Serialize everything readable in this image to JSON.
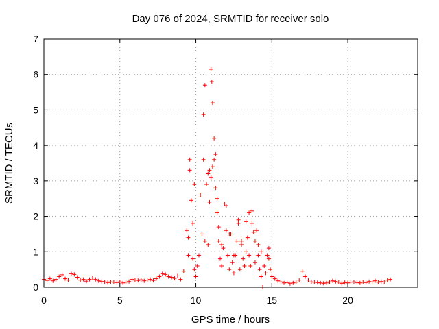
{
  "chart_data": {
    "type": "scatter",
    "title": "Day 076 of 2024, SRMTID for receiver solo",
    "xlabel": "GPS time / hours",
    "ylabel": "SRMTID / TECUs",
    "xlim": [
      0,
      24.6
    ],
    "ylim": [
      0,
      7
    ],
    "xticks": [
      0,
      5,
      10,
      15,
      20
    ],
    "yticks": [
      0,
      1,
      2,
      3,
      4,
      5,
      6,
      7
    ],
    "grid": true,
    "marker": "+",
    "marker_color": "#ff0000",
    "series": [
      {
        "name": "SRMTID",
        "x": [
          0.0,
          0.2,
          0.4,
          0.6,
          0.8,
          1.0,
          1.2,
          1.4,
          1.6,
          1.8,
          2.0,
          2.2,
          2.4,
          2.6,
          2.8,
          3.0,
          3.2,
          3.4,
          3.6,
          3.8,
          4.0,
          4.2,
          4.4,
          4.6,
          4.8,
          5.0,
          5.2,
          5.4,
          5.6,
          5.8,
          6.0,
          6.2,
          6.4,
          6.6,
          6.8,
          7.0,
          7.2,
          7.4,
          7.6,
          7.8,
          8.0,
          8.2,
          8.4,
          8.6,
          8.8,
          9.0,
          9.2,
          9.4,
          9.5,
          9.6,
          9.7,
          9.8,
          9.9,
          10.0,
          10.1,
          10.2,
          10.3,
          10.4,
          10.5,
          10.6,
          10.7,
          10.8,
          10.9,
          11.0,
          11.05,
          11.1,
          11.2,
          11.3,
          11.4,
          11.5,
          11.6,
          11.7,
          11.8,
          11.9,
          12.0,
          12.1,
          12.2,
          12.3,
          12.4,
          12.5,
          12.6,
          12.7,
          12.8,
          12.9,
          13.0,
          13.1,
          13.2,
          13.3,
          13.4,
          13.5,
          13.6,
          13.7,
          13.8,
          13.9,
          14.0,
          14.1,
          14.2,
          14.3,
          14.4,
          14.5,
          14.6,
          14.7,
          14.8,
          14.9,
          15.0,
          15.2,
          15.4,
          15.6,
          15.8,
          16.0,
          16.2,
          16.4,
          16.6,
          16.8,
          17.0,
          17.2,
          17.4,
          17.6,
          17.8,
          18.0,
          18.2,
          18.4,
          18.6,
          18.8,
          19.0,
          19.2,
          19.4,
          19.6,
          19.8,
          20.0,
          20.2,
          20.4,
          20.6,
          20.8,
          21.0,
          21.2,
          21.4,
          21.6,
          21.8,
          22.0,
          22.2,
          22.4,
          22.6,
          22.8,
          9.5,
          9.6,
          9.8,
          9.9,
          10.5,
          10.6,
          10.8,
          10.9,
          11.0,
          11.1,
          11.2,
          11.3,
          11.4,
          11.5,
          11.7,
          12.0,
          12.2,
          12.5,
          12.8,
          13.0,
          13.3,
          13.5,
          13.7,
          13.9,
          14.1,
          14.3,
          14.8
        ],
        "y": [
          0.22,
          0.19,
          0.24,
          0.18,
          0.22,
          0.3,
          0.35,
          0.24,
          0.2,
          0.38,
          0.36,
          0.28,
          0.2,
          0.22,
          0.17,
          0.22,
          0.26,
          0.22,
          0.18,
          0.16,
          0.15,
          0.13,
          0.15,
          0.14,
          0.13,
          0.15,
          0.12,
          0.14,
          0.16,
          0.22,
          0.2,
          0.19,
          0.21,
          0.18,
          0.2,
          0.22,
          0.19,
          0.24,
          0.3,
          0.38,
          0.36,
          0.3,
          0.28,
          0.25,
          0.32,
          0.22,
          0.45,
          1.6,
          0.9,
          3.6,
          2.45,
          0.8,
          0.5,
          0.3,
          0.6,
          0.9,
          2.6,
          1.5,
          4.87,
          5.7,
          2.9,
          1.2,
          3.3,
          6.15,
          5.8,
          5.2,
          4.2,
          3.75,
          2.5,
          1.3,
          0.8,
          0.6,
          1.1,
          2.35,
          1.6,
          0.9,
          0.5,
          1.5,
          0.7,
          0.4,
          0.9,
          1.3,
          1.9,
          0.5,
          1.2,
          0.8,
          0.6,
          1.85,
          1.4,
          0.9,
          0.6,
          2.15,
          1.55,
          0.7,
          1.6,
          0.9,
          0.5,
          0.3,
          0.0,
          0.6,
          0.4,
          0.9,
          1.1,
          0.5,
          0.3,
          0.24,
          0.18,
          0.15,
          0.12,
          0.13,
          0.1,
          0.12,
          0.14,
          0.2,
          0.45,
          0.3,
          0.2,
          0.15,
          0.14,
          0.13,
          0.12,
          0.11,
          0.12,
          0.15,
          0.18,
          0.16,
          0.14,
          0.11,
          0.13,
          0.12,
          0.14,
          0.15,
          0.13,
          0.12,
          0.14,
          0.13,
          0.16,
          0.15,
          0.18,
          0.14,
          0.16,
          0.15,
          0.2,
          0.22,
          1.4,
          3.3,
          1.8,
          2.9,
          3.6,
          1.3,
          3.2,
          2.4,
          3.1,
          3.4,
          3.6,
          2.8,
          2.1,
          1.7,
          1.2,
          2.3,
          1.5,
          0.9,
          1.8,
          1.3,
          1.0,
          2.1,
          1.8,
          1.3,
          1.2,
          1.0,
          0.8
        ]
      }
    ]
  }
}
